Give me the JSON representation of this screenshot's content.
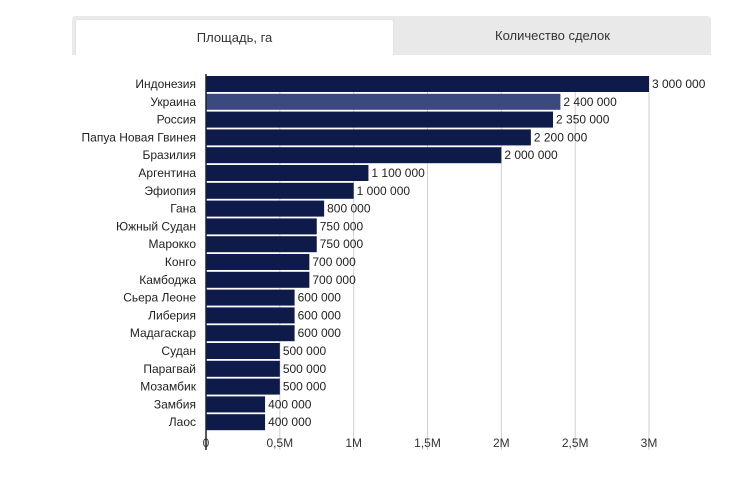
{
  "tabs": [
    {
      "label": "Площадь, га",
      "active": true
    },
    {
      "label": "Количество сделок",
      "active": false
    }
  ],
  "colors": {
    "bar": "#0e1a4a",
    "highlight": "#3b4a7e",
    "grid": "#cfcfcf",
    "tab_bg": "#e9e9e9"
  },
  "chart_data": {
    "type": "bar",
    "orientation": "horizontal",
    "categories": [
      "Индонезия",
      "Украина",
      "Россия",
      "Папуа Новая Гвинея",
      "Бразилия",
      "Аргентина",
      "Эфиопия",
      "Гана",
      "Южный Судан",
      "Марокко",
      "Конго",
      "Камбоджа",
      "Сьера Леоне",
      "Либерия",
      "Мадагаскар",
      "Судан",
      "Парагвай",
      "Мозамбик",
      "Замбия",
      "Лаос"
    ],
    "values": [
      3000000,
      2400000,
      2350000,
      2200000,
      2000000,
      1100000,
      1000000,
      800000,
      750000,
      750000,
      700000,
      700000,
      600000,
      600000,
      600000,
      500000,
      500000,
      500000,
      400000,
      400000
    ],
    "value_labels": [
      "3 000 000",
      "2 400 000",
      "2 350 000",
      "2 200 000",
      "2 000 000",
      "1 100 000",
      "1 000 000",
      "800 000",
      "750 000",
      "750 000",
      "700 000",
      "700 000",
      "600 000",
      "600 000",
      "600 000",
      "500 000",
      "500 000",
      "500 000",
      "400 000",
      "400 000"
    ],
    "highlighted_category": "Украина",
    "x_ticks": [
      0,
      500000,
      1000000,
      1500000,
      2000000,
      2500000,
      3000000
    ],
    "x_tick_labels": [
      "0",
      "0,5M",
      "1M",
      "1,5M",
      "2M",
      "2,5M",
      "3M"
    ],
    "xlim": [
      0,
      3000000
    ],
    "grid": true,
    "title": "",
    "xlabel": "",
    "ylabel": ""
  }
}
